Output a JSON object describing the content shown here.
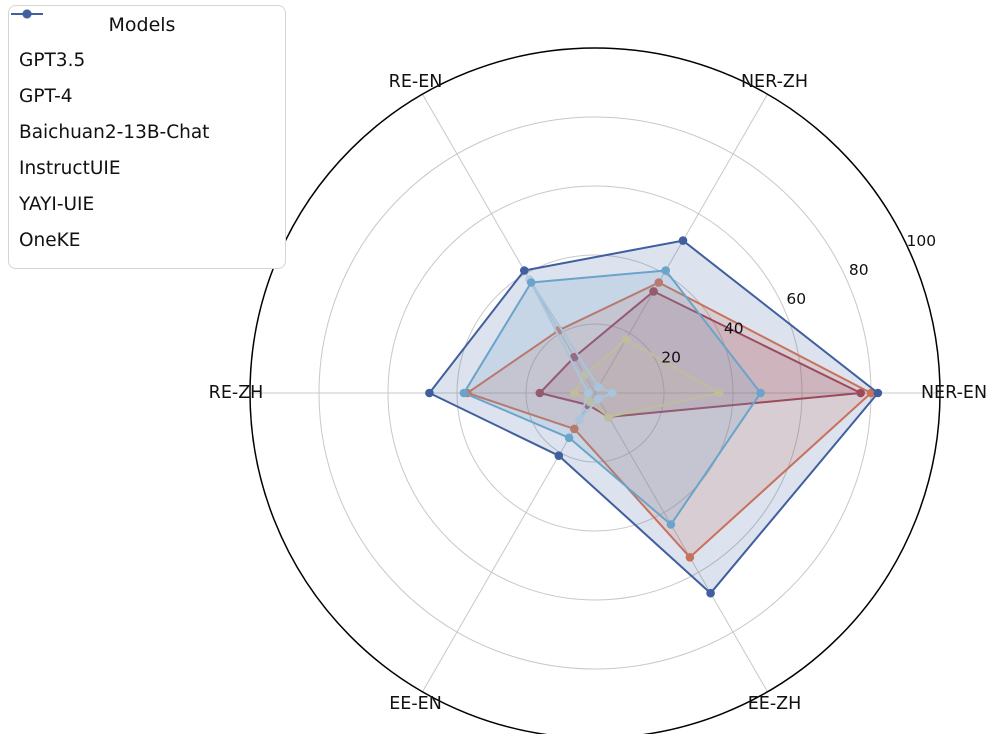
{
  "figure": {
    "background": "#ffffff"
  },
  "legend": {
    "title": "Models",
    "position": "upper left"
  },
  "chart_data": {
    "type": "radar",
    "title": "",
    "categories": [
      "NER-EN",
      "NER-ZH",
      "RE-EN",
      "RE-ZH",
      "EE-EN",
      "EE-ZH"
    ],
    "series": [
      {
        "name": "GPT3.5",
        "color": "#a63c50",
        "values": [
          77,
          34,
          12,
          16,
          4,
          8
        ]
      },
      {
        "name": "GPT-4",
        "color": "#e8764e",
        "values": [
          80,
          37,
          21,
          37,
          12,
          55
        ]
      },
      {
        "name": "Baichuan2-13B-Chat",
        "color": "#f3da8f",
        "values": [
          36,
          18,
          6,
          6,
          3,
          8
        ]
      },
      {
        "name": "InstructUIE",
        "color": "#d4e5ef",
        "values": [
          5,
          2,
          38,
          2,
          9,
          2
        ]
      },
      {
        "name": "YAYI-UIE",
        "color": "#74b4d4",
        "values": [
          48,
          41,
          37,
          38,
          15,
          44
        ]
      },
      {
        "name": "OneKE",
        "color": "#3f5f9e",
        "values": [
          82,
          51,
          41,
          48,
          21,
          67
        ]
      }
    ],
    "radial_ticks": [
      20,
      40,
      60,
      80,
      100
    ],
    "tick_labels": [
      "20",
      "40",
      "60",
      "80",
      "100"
    ],
    "r_max": 100,
    "grid": true,
    "grid_color": "#c8c8c8",
    "outer_circle_color": "#000000",
    "tick_label_angle_deg": 25,
    "fill_opacity": 0.18,
    "legend_position": "upper left"
  }
}
